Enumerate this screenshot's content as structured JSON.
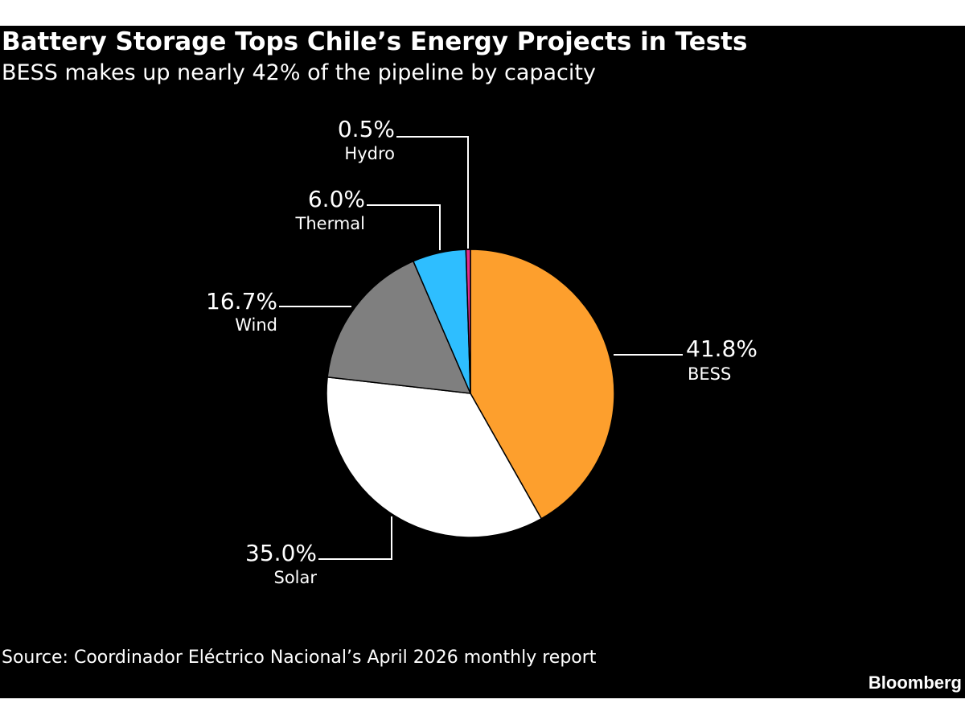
{
  "header": {
    "title": "Battery Storage Tops Chile’s Energy Projects in Tests",
    "subtitle": "BESS makes up nearly 42% of the pipeline by capacity"
  },
  "footer": {
    "source": "Source: Coordinador Eléctrico Nacional’s April 2026 monthly report",
    "brand": "Bloomberg"
  },
  "chart_data": {
    "type": "pie",
    "title": "Battery Storage Tops Chile’s Energy Projects in Tests",
    "subtitle": "BESS makes up nearly 42% of the pipeline by capacity",
    "slices": [
      {
        "label": "BESS",
        "value": 41.8,
        "value_label": "41.8%",
        "color": "#fd9f2d"
      },
      {
        "label": "Solar",
        "value": 35.0,
        "value_label": "35.0%",
        "color": "#ffffff"
      },
      {
        "label": "Wind",
        "value": 16.7,
        "value_label": "16.7%",
        "color": "#7f7f7f"
      },
      {
        "label": "Thermal",
        "value": 6.0,
        "value_label": "6.0%",
        "color": "#2ebeff"
      },
      {
        "label": "Hydro",
        "value": 0.5,
        "value_label": "0.5%",
        "color": "#e42d8d"
      }
    ],
    "legend": "none",
    "background": "#000000"
  }
}
